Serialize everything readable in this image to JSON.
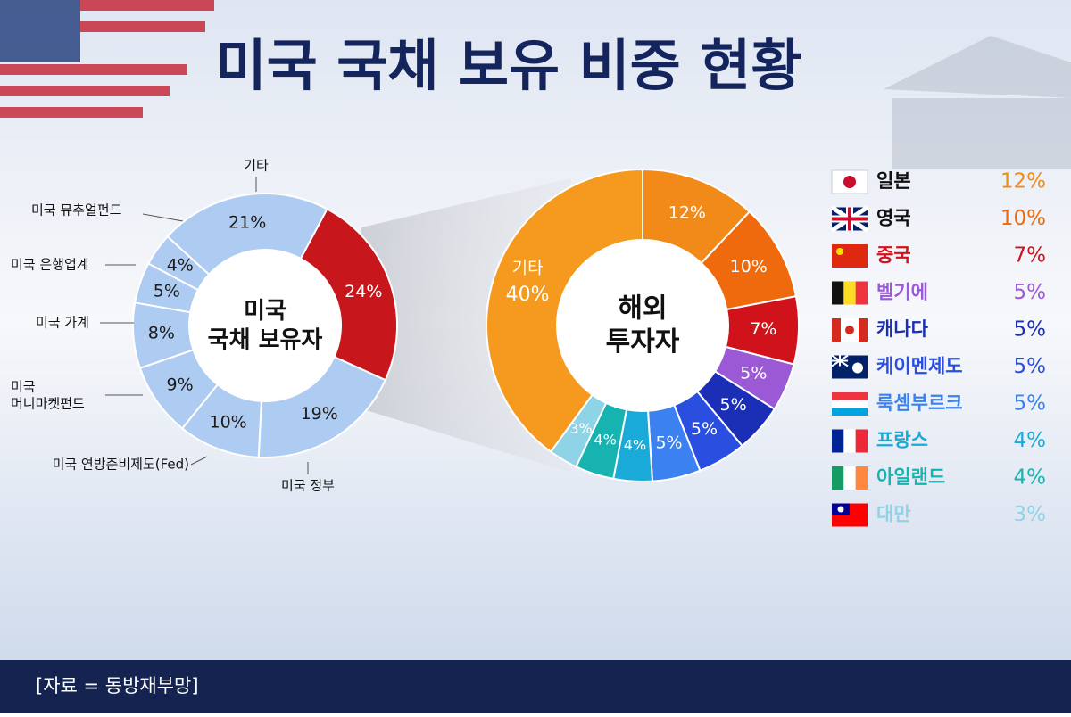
{
  "title": "미국 국채 보유 비중 현황",
  "source": "[자료 = 동방재부망]",
  "chart_data": [
    {
      "type": "donut",
      "center_label": "미국\n국채 보유자",
      "categories": [
        null,
        "미국 정부",
        "미국 연방준비제도(Fed)",
        "미국\n머니마켓펀드",
        "미국 가계",
        "미국 은행업계",
        "미국 뮤추얼펀드",
        "기타"
      ],
      "values": [
        24,
        19,
        10,
        9,
        8,
        5,
        4,
        21
      ],
      "value_labels": [
        "24%",
        "19%",
        "10%",
        "9%",
        "8%",
        "5%",
        "4%",
        "21%"
      ],
      "colors": [
        "#c8161d",
        "#aecbf2",
        "#aecbf2",
        "#aecbf2",
        "#aecbf2",
        "#aecbf2",
        "#aecbf2",
        "#aecbf2"
      ]
    },
    {
      "type": "donut",
      "center_label": "해외\n투자자",
      "categories": [
        "일본",
        "영국",
        "중국",
        "벨기에",
        "캐나다",
        "케이멘제도",
        "룩셈부르크",
        "프랑스",
        "아일랜드",
        "대만",
        "기타"
      ],
      "values": [
        12,
        10,
        7,
        5,
        5,
        5,
        5,
        4,
        4,
        3,
        40
      ],
      "value_labels": [
        "12%",
        "10%",
        "7%",
        "5%",
        "5%",
        "5%",
        "5%",
        "4%",
        "4%",
        "3%",
        "40%"
      ],
      "colors": [
        "#f28a1a",
        "#ef6a0c",
        "#d0121b",
        "#9b59d6",
        "#1a2fb5",
        "#2a4fe0",
        "#3b82f0",
        "#1aaad8",
        "#17b3b0",
        "#8fd3e6",
        "#f5991f"
      ]
    }
  ]
}
